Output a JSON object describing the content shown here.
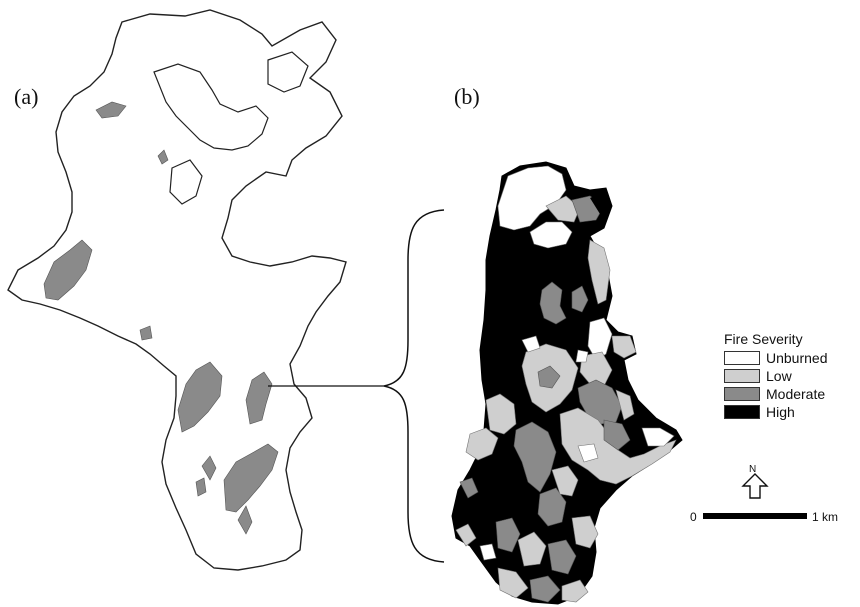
{
  "panels": {
    "a_label": "(a)",
    "b_label": "(b)"
  },
  "legend": {
    "title": "Fire Severity",
    "items": [
      {
        "label": "Unburned",
        "color": "#ffffff"
      },
      {
        "label": "Low",
        "color": "#cfcfcf"
      },
      {
        "label": "Moderate",
        "color": "#8a8a8a"
      },
      {
        "label": "High",
        "color": "#000000"
      }
    ]
  },
  "north_arrow": {
    "label": "N"
  },
  "scale_bar": {
    "start": "0",
    "end": "1 km"
  },
  "colors": {
    "outline": "#222222",
    "moderate": "#8a8a8a",
    "low": "#cfcfcf",
    "high": "#000000"
  }
}
